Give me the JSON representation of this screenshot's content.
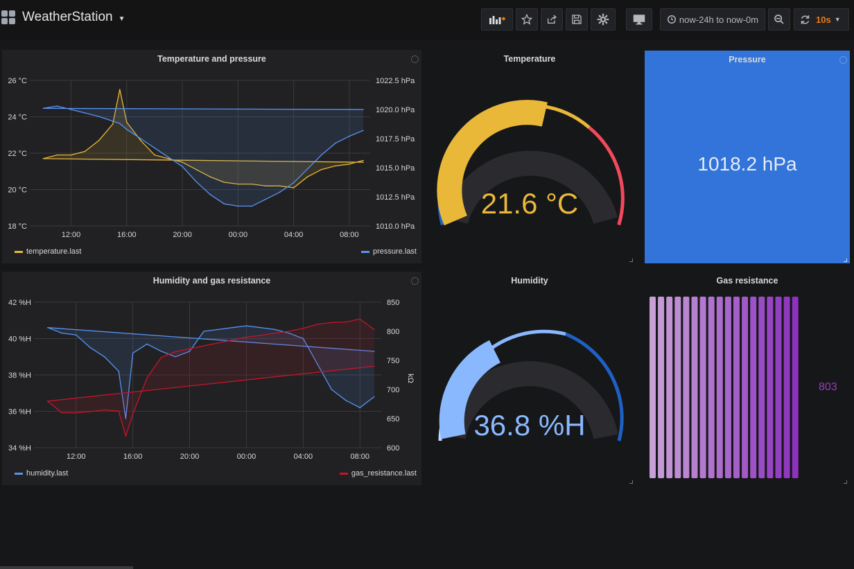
{
  "dashboard": {
    "title": "WeatherStation"
  },
  "toolbar": {
    "time_range": "now-24h to now-0m",
    "refresh_interval": "10s"
  },
  "colors": {
    "temperature": "#eab839",
    "pressure": "#5794f2",
    "humidity": "#5794f2",
    "gas": "#c4162a",
    "pressure_bg": "#3274d9",
    "gauge_temp_value": "#eab839",
    "gauge_hum_value": "#8ab8ff",
    "gas_value": "#9c3cbf"
  },
  "panels": {
    "temp_pressure": {
      "title": "Temperature and pressure",
      "y_left": [
        "26 °C",
        "24 °C",
        "22 °C",
        "20 °C",
        "18 °C"
      ],
      "y_right": [
        "1022.5 hPa",
        "1020.0 hPa",
        "1017.5 hPa",
        "1015.0 hPa",
        "1012.5 hPa",
        "1010.0 hPa"
      ],
      "x": [
        "12:00",
        "16:00",
        "20:00",
        "00:00",
        "04:00",
        "08:00"
      ],
      "legend_left": "temperature.last",
      "legend_right": "pressure.last"
    },
    "temperature": {
      "title": "Temperature",
      "value": "21.6 °C"
    },
    "pressure": {
      "title": "Pressure",
      "value": "1018.2 hPa"
    },
    "hum_gas": {
      "title": "Humidity and gas resistance",
      "y_left": [
        "42 %H",
        "40 %H",
        "38 %H",
        "36 %H",
        "34 %H"
      ],
      "y_right": [
        "850",
        "800",
        "750",
        "700",
        "650",
        "600"
      ],
      "y_right_unit": "kΩ",
      "x": [
        "12:00",
        "16:00",
        "20:00",
        "00:00",
        "04:00",
        "08:00"
      ],
      "legend_left": "humidity.last",
      "legend_right": "gas_resistance.last"
    },
    "humidity": {
      "title": "Humidity",
      "value": "36.8 %H"
    },
    "gas": {
      "title": "Gas resistance",
      "value": "803"
    }
  },
  "chart_data": [
    {
      "type": "line",
      "title": "Temperature and pressure",
      "x": [
        "09:00",
        "10:00",
        "11:00",
        "12:00",
        "13:00",
        "14:00",
        "15:00",
        "15:30",
        "16:00",
        "17:00",
        "18:00",
        "19:00",
        "20:00",
        "21:00",
        "22:00",
        "23:00",
        "00:00",
        "01:00",
        "02:00",
        "03:00",
        "04:00",
        "05:00",
        "06:00",
        "07:00",
        "08:00",
        "09:00"
      ],
      "series": [
        {
          "name": "temperature.last",
          "axis": "left",
          "unit": "°C",
          "values": [
            21.5,
            21.7,
            21.9,
            21.9,
            22.1,
            22.7,
            23.6,
            25.5,
            23.7,
            22.7,
            21.9,
            21.7,
            21.5,
            21.1,
            20.7,
            20.4,
            20.3,
            20.3,
            20.2,
            20.2,
            20.1,
            20.7,
            21.1,
            21.3,
            21.4,
            21.6
          ]
        },
        {
          "name": "pressure.last",
          "axis": "right",
          "unit": "hPa",
          "values": [
            1020.0,
            1020.1,
            1020.3,
            1020.0,
            1019.7,
            1019.4,
            1019.0,
            1018.8,
            1018.3,
            1017.5,
            1016.7,
            1015.9,
            1015.1,
            1013.8,
            1012.7,
            1011.9,
            1011.7,
            1011.7,
            1012.3,
            1012.9,
            1013.7,
            1014.9,
            1016.1,
            1017.1,
            1017.7,
            1018.2
          ]
        }
      ],
      "ylim_left": [
        18,
        26
      ],
      "ylim_right": [
        1010,
        1022.5
      ]
    },
    {
      "type": "line",
      "title": "Humidity and gas resistance",
      "x": [
        "09:00",
        "10:00",
        "11:00",
        "12:00",
        "13:00",
        "14:00",
        "15:00",
        "15:30",
        "16:00",
        "17:00",
        "18:00",
        "19:00",
        "20:00",
        "21:00",
        "22:00",
        "23:00",
        "00:00",
        "01:00",
        "02:00",
        "03:00",
        "04:00",
        "05:00",
        "06:00",
        "07:00",
        "08:00",
        "09:00"
      ],
      "series": [
        {
          "name": "humidity.last",
          "axis": "left",
          "unit": "%H",
          "values": [
            39.3,
            40.6,
            40.3,
            40.2,
            39.5,
            39.0,
            38.2,
            35.6,
            39.2,
            39.7,
            39.3,
            39.0,
            39.3,
            40.4,
            40.5,
            40.6,
            40.7,
            40.6,
            40.5,
            40.3,
            40.0,
            38.6,
            37.2,
            36.6,
            36.2,
            36.8
          ]
        },
        {
          "name": "gas_resistance.last",
          "axis": "right",
          "unit": "kΩ",
          "values": [
            740,
            680,
            660,
            660,
            662,
            665,
            663,
            620,
            658,
            720,
            755,
            765,
            770,
            775,
            780,
            785,
            790,
            793,
            797,
            800,
            805,
            812,
            815,
            816,
            821,
            803
          ]
        }
      ],
      "ylim_left": [
        34,
        42
      ],
      "ylim_right": [
        600,
        850
      ]
    }
  ],
  "gauges": {
    "temperature": {
      "value": 21.6,
      "min": 0,
      "max": 40
    },
    "humidity": {
      "value": 36.8,
      "min": 0,
      "max": 100
    }
  }
}
